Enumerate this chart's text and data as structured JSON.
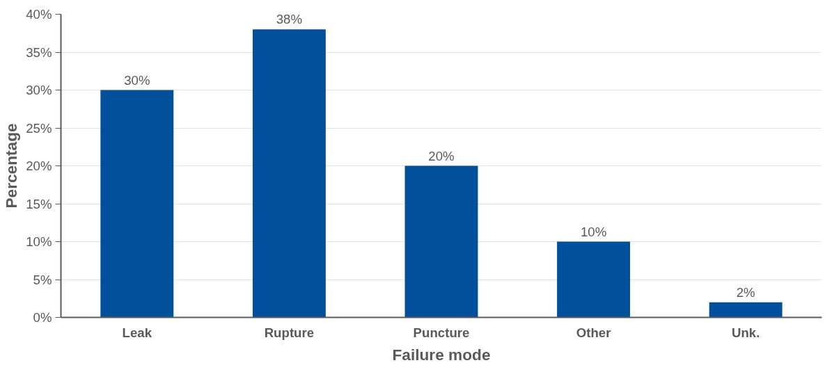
{
  "chart_data": {
    "type": "bar",
    "xlabel": "Failure mode",
    "ylabel": "Percentage",
    "categories": [
      "Leak",
      "Rupture",
      "Puncture",
      "Other",
      "Unk."
    ],
    "values": [
      30,
      38,
      20,
      10,
      2
    ],
    "value_labels": [
      "30%",
      "38%",
      "20%",
      "10%",
      "2%"
    ],
    "color": "#02509b",
    "ylim": [
      0,
      40
    ],
    "yticks": [
      {
        "value": 0,
        "label": "0%"
      },
      {
        "value": 5,
        "label": "5%"
      },
      {
        "value": 10,
        "label": "10%"
      },
      {
        "value": 15,
        "label": "15%"
      },
      {
        "value": 20,
        "label": "20%"
      },
      {
        "value": 25,
        "label": "25%"
      },
      {
        "value": 30,
        "label": "30%"
      },
      {
        "value": 35,
        "label": "35%"
      },
      {
        "value": 40,
        "label": "40%"
      }
    ],
    "grid": "y"
  }
}
